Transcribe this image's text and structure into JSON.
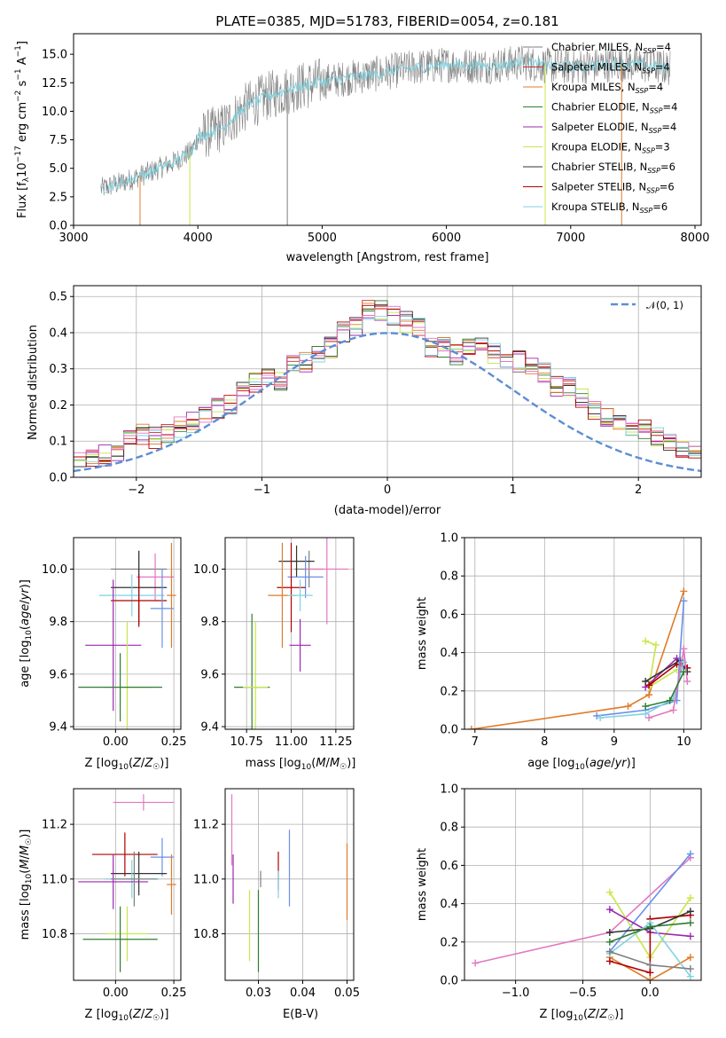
{
  "palette": [
    "#7f7f7f",
    "#d62728",
    "#e07b28",
    "#2e7d32",
    "#9c27b0",
    "#c8e64a",
    "#333333",
    "#b00000",
    "#7fd3e0",
    "#e377c2",
    "#6a8fe8",
    "#1f77b4"
  ],
  "chart_data": [
    {
      "id": "spectrum",
      "type": "line",
      "title": "PLATE=0385, MJD=51783, FIBERID=0054, z=0.181",
      "xlabel": "wavelength [Angstrom, rest frame]",
      "ylabel": "Flux [f$_\\lambda$10$^{-17}$ erg cm$^{-2}$ s$^{-1}$ A$^{-1}$]",
      "xlim": [
        3000,
        8050
      ],
      "ylim": [
        0,
        16.8
      ],
      "xticks": [
        3000,
        4000,
        5000,
        6000,
        7000,
        8000
      ],
      "yticks": [
        0.0,
        2.5,
        5.0,
        7.5,
        10.0,
        12.5,
        15.0
      ],
      "continuum": [
        [
          3220,
          3.2
        ],
        [
          3400,
          3.8
        ],
        [
          3600,
          4.6
        ],
        [
          3800,
          5.5
        ],
        [
          3950,
          6.5
        ],
        [
          4000,
          7.7
        ],
        [
          4200,
          8.6
        ],
        [
          4400,
          10.5
        ],
        [
          4600,
          11.5
        ],
        [
          4800,
          12.1
        ],
        [
          5000,
          12.6
        ],
        [
          5200,
          12.9
        ],
        [
          5400,
          13.2
        ],
        [
          5600,
          13.6
        ],
        [
          5800,
          13.9
        ],
        [
          6000,
          14.1
        ],
        [
          6200,
          14.0
        ],
        [
          6400,
          14.0
        ],
        [
          6600,
          14.3
        ],
        [
          6800,
          14.0
        ],
        [
          7000,
          13.9
        ],
        [
          7200,
          14.0
        ],
        [
          7400,
          14.2
        ],
        [
          7600,
          14.0
        ],
        [
          7800,
          13.8
        ]
      ],
      "legend": [
        {
          "main": "Chabrier MILES, N",
          "sub": "SSP",
          "tail": "=4",
          "color": "#7f7f7f"
        },
        {
          "main": "Salpeter MILES, N",
          "sub": "SSP",
          "tail": "=4",
          "color": "#d62728"
        },
        {
          "main": "Kroupa MILES, N",
          "sub": "SSP",
          "tail": "=4",
          "color": "#e07b28"
        },
        {
          "main": "Chabrier ELODIE, N",
          "sub": "SSP",
          "tail": "=4",
          "color": "#2e7d32"
        },
        {
          "main": "Salpeter ELODIE, N",
          "sub": "SSP",
          "tail": "=4",
          "color": "#9c27b0"
        },
        {
          "main": "Kroupa ELODIE, N",
          "sub": "SSP",
          "tail": "=3",
          "color": "#c8e64a"
        },
        {
          "main": "Chabrier STELIB, N",
          "sub": "SSP",
          "tail": "=6",
          "color": "#333333"
        },
        {
          "main": "Salpeter STELIB, N",
          "sub": "SSP",
          "tail": "=6",
          "color": "#b00000"
        },
        {
          "main": "Kroupa STELIB, N",
          "sub": "SSP",
          "tail": "=6",
          "color": "#7fd3e0"
        }
      ]
    },
    {
      "id": "residuals",
      "type": "histogram",
      "xlabel": "(data-model)/error",
      "ylabel": "Normed distribution",
      "xlim": [
        -2.5,
        2.5
      ],
      "ylim": [
        0,
        0.53
      ],
      "xticks": [
        -2,
        -1,
        0,
        1,
        2
      ],
      "yticks": [
        0.0,
        0.1,
        0.2,
        0.3,
        0.4,
        0.5
      ],
      "bin_width": 0.1,
      "hist": [
        0.02,
        0.02,
        0.03,
        0.04,
        0.04,
        0.05,
        0.05,
        0.06,
        0.06,
        0.1,
        0.12,
        0.11,
        0.12,
        0.14,
        0.15,
        0.17,
        0.19,
        0.2,
        0.24,
        0.26,
        0.28,
        0.27,
        0.31,
        0.32,
        0.34,
        0.36,
        0.4,
        0.42,
        0.46,
        0.46,
        0.45,
        0.43,
        0.42,
        0.36,
        0.36,
        0.34,
        0.36,
        0.37,
        0.34,
        0.33,
        0.32,
        0.3,
        0.29,
        0.25,
        0.25,
        0.22,
        0.19,
        0.17,
        0.16,
        0.14,
        0.13,
        0.11,
        0.1,
        0.08,
        0.07,
        0.07,
        0.05,
        0.04,
        0.03,
        0.02
      ],
      "legend_label": "𝒩(0, 1)",
      "curve_color": "#5b8ed6"
    },
    {
      "id": "age_vs_Z",
      "type": "errorbar",
      "xlabel": "Z [log₁₀(Z/Z☉)]",
      "ylabel": "age  [log₁₀(age/yr)]",
      "xlim": [
        -0.18,
        0.28
      ],
      "ylim": [
        9.39,
        10.12
      ],
      "xticks": [
        0.0,
        0.25
      ],
      "xticklabels": [
        "0.00",
        "0.25"
      ],
      "yticks": [
        9.4,
        9.6,
        9.8,
        10.0
      ],
      "yticklabels": [
        "9.4",
        "9.6",
        "9.8",
        "10.0"
      ],
      "points": [
        {
          "x": 0.1,
          "xe": 0.12,
          "y": 10.0,
          "ye": 0.07,
          "c": "#7f7f7f"
        },
        {
          "x": 0.17,
          "xe": 0.08,
          "y": 9.97,
          "ye": 0.09,
          "c": "#e377c2"
        },
        {
          "x": 0.24,
          "xe": 0.02,
          "y": 9.9,
          "ye": 0.2,
          "c": "#e07b28"
        },
        {
          "x": 0.1,
          "xe": 0.12,
          "y": 9.93,
          "ye": 0.14,
          "c": "#333333"
        },
        {
          "x": 0.07,
          "xe": 0.14,
          "y": 9.9,
          "ye": 0.08,
          "c": "#7fd3e0"
        },
        {
          "x": 0.1,
          "xe": 0.12,
          "y": 9.88,
          "ye": 0.1,
          "c": "#b00000"
        },
        {
          "x": 0.2,
          "xe": 0.05,
          "y": 9.85,
          "ye": 0.15,
          "c": "#6a8fe8"
        },
        {
          "x": -0.01,
          "xe": 0.12,
          "y": 9.71,
          "ye": 0.25,
          "c": "#9c27b0"
        },
        {
          "x": 0.05,
          "xe": 0.1,
          "y": 9.55,
          "ye": 0.25,
          "c": "#c8e64a"
        },
        {
          "x": 0.02,
          "xe": 0.18,
          "y": 9.55,
          "ye": 0.13,
          "c": "#2e7d32"
        }
      ]
    },
    {
      "id": "age_vs_mass",
      "type": "errorbar",
      "xlabel": "mass [log₁₀(M/M☉)]",
      "ylabel": "",
      "xlim": [
        10.63,
        11.35
      ],
      "ylim": [
        9.39,
        10.12
      ],
      "xticks": [
        10.75,
        11.0,
        11.25
      ],
      "xticklabels": [
        "10.75",
        "11.00",
        "11.25"
      ],
      "yticks": [
        9.4,
        9.6,
        9.8,
        10.0
      ],
      "yticklabels": [
        "9.4",
        "9.6",
        "9.8",
        "10.0"
      ],
      "points": [
        {
          "x": 11.1,
          "xe": 0.08,
          "y": 10.0,
          "ye": 0.07,
          "c": "#7f7f7f"
        },
        {
          "x": 11.2,
          "xe": 0.12,
          "y": 10.0,
          "ye": 0.21,
          "c": "#e377c2"
        },
        {
          "x": 11.03,
          "xe": 0.1,
          "y": 10.03,
          "ye": 0.06,
          "c": "#333333"
        },
        {
          "x": 11.08,
          "xe": 0.1,
          "y": 9.97,
          "ye": 0.08,
          "c": "#6a8fe8"
        },
        {
          "x": 11.0,
          "xe": 0.08,
          "y": 9.93,
          "ye": 0.17,
          "c": "#b00000"
        },
        {
          "x": 10.95,
          "xe": 0.08,
          "y": 9.9,
          "ye": 0.2,
          "c": "#e07b28"
        },
        {
          "x": 11.05,
          "xe": 0.07,
          "y": 9.9,
          "ye": 0.06,
          "c": "#7fd3e0"
        },
        {
          "x": 11.05,
          "xe": 0.06,
          "y": 9.71,
          "ye": 0.1,
          "c": "#9c27b0"
        },
        {
          "x": 10.78,
          "xe": 0.1,
          "y": 9.55,
          "ye": 0.28,
          "c": "#2e7d32"
        },
        {
          "x": 10.8,
          "xe": 0.07,
          "y": 9.55,
          "ye": 0.25,
          "c": "#c8e64a"
        }
      ]
    },
    {
      "id": "weight_vs_age",
      "type": "line",
      "xlabel": "age  [log₁₀(age/yr)]",
      "ylabel": "mass weight",
      "xlim": [
        6.85,
        10.25
      ],
      "ylim": [
        0,
        1
      ],
      "xticks": [
        7,
        8,
        9,
        10
      ],
      "xticklabels": [
        "7",
        "8",
        "9",
        "10"
      ],
      "yticks": [
        0.0,
        0.2,
        0.4,
        0.6,
        0.8,
        1.0
      ],
      "yticklabels": [
        "0.0",
        "0.2",
        "0.4",
        "0.6",
        "0.8",
        "1.0"
      ],
      "series": [
        {
          "c": "#e07b28",
          "pts": [
            [
              6.95,
              0.0
            ],
            [
              9.2,
              0.12
            ],
            [
              9.5,
              0.18
            ],
            [
              10.0,
              0.72
            ]
          ]
        },
        {
          "c": "#c8e64a",
          "pts": [
            [
              9.45,
              0.46
            ],
            [
              9.6,
              0.44
            ],
            [
              9.5,
              0.22
            ],
            [
              9.9,
              0.31
            ]
          ]
        },
        {
          "c": "#9c27b0",
          "pts": [
            [
              9.45,
              0.22
            ],
            [
              9.9,
              0.37
            ],
            [
              10.0,
              0.33
            ]
          ]
        },
        {
          "c": "#b00000",
          "pts": [
            [
              9.5,
              0.23
            ],
            [
              9.9,
              0.34
            ],
            [
              10.05,
              0.32
            ]
          ]
        },
        {
          "c": "#333333",
          "pts": [
            [
              9.45,
              0.25
            ],
            [
              9.95,
              0.36
            ],
            [
              10.05,
              0.3
            ]
          ]
        },
        {
          "c": "#6a8fe8",
          "pts": [
            [
              8.75,
              0.07
            ],
            [
              9.45,
              0.1
            ],
            [
              9.9,
              0.15
            ],
            [
              10.0,
              0.67
            ]
          ]
        },
        {
          "c": "#7fd3e0",
          "pts": [
            [
              8.8,
              0.06
            ],
            [
              9.45,
              0.08
            ],
            [
              9.85,
              0.16
            ],
            [
              10.0,
              0.35
            ]
          ]
        },
        {
          "c": "#e377c2",
          "pts": [
            [
              9.5,
              0.06
            ],
            [
              9.85,
              0.1
            ],
            [
              10.0,
              0.42
            ],
            [
              10.05,
              0.25
            ]
          ]
        },
        {
          "c": "#2e7d32",
          "pts": [
            [
              9.45,
              0.12
            ],
            [
              9.8,
              0.15
            ],
            [
              10.0,
              0.3
            ]
          ]
        }
      ]
    },
    {
      "id": "mass_vs_Z",
      "type": "errorbar",
      "xlabel": "Z [log₁₀(Z/Z☉)]",
      "ylabel": "mass [log₁₀(M/M☉)]",
      "xlim": [
        -0.18,
        0.28
      ],
      "ylim": [
        10.63,
        11.33
      ],
      "xticks": [
        0.0,
        0.25
      ],
      "xticklabels": [
        "0.00",
        "0.25"
      ],
      "yticks": [
        10.8,
        11.0,
        11.2
      ],
      "yticklabels": [
        "10.8",
        "11.0",
        "11.2"
      ],
      "points": [
        {
          "x": 0.12,
          "xe": 0.13,
          "y": 11.28,
          "ye": 0.03,
          "c": "#e377c2"
        },
        {
          "x": 0.04,
          "xe": 0.14,
          "y": 11.09,
          "ye": 0.08,
          "c": "#b00000"
        },
        {
          "x": 0.2,
          "xe": 0.05,
          "y": 11.08,
          "ye": 0.07,
          "c": "#6a8fe8"
        },
        {
          "x": 0.1,
          "xe": 0.12,
          "y": 11.02,
          "ye": 0.08,
          "c": "#333333"
        },
        {
          "x": 0.24,
          "xe": 0.02,
          "y": 10.98,
          "ye": 0.11,
          "c": "#e07b28"
        },
        {
          "x": 0.07,
          "xe": 0.12,
          "y": 11.0,
          "ye": 0.07,
          "c": "#7fd3e0"
        },
        {
          "x": -0.01,
          "xe": 0.15,
          "y": 10.99,
          "ye": 0.1,
          "c": "#9c27b0"
        },
        {
          "x": 0.08,
          "xe": 0.1,
          "y": 11.0,
          "ye": 0.1,
          "c": "#7f7f7f"
        },
        {
          "x": 0.05,
          "xe": 0.09,
          "y": 10.8,
          "ye": 0.1,
          "c": "#c8e64a"
        },
        {
          "x": 0.02,
          "xe": 0.16,
          "y": 10.78,
          "ye": 0.12,
          "c": "#2e7d32"
        }
      ]
    },
    {
      "id": "mass_vs_EBV",
      "type": "errorbar",
      "xlabel": "E(B-V)",
      "ylabel": "",
      "xlim": [
        0.0225,
        0.0515
      ],
      "ylim": [
        10.63,
        11.33
      ],
      "xticks": [
        0.03,
        0.04,
        0.05
      ],
      "xticklabels": [
        "0.03",
        "0.04",
        "0.05"
      ],
      "yticks": [
        10.8,
        11.0,
        11.2
      ],
      "yticklabels": [
        "10.8",
        "11.0",
        "11.2"
      ],
      "points": [
        {
          "x": 0.024,
          "xe": 0,
          "y": 11.18,
          "ye": 0.13,
          "c": "#e377c2"
        },
        {
          "x": 0.0243,
          "xe": 0,
          "y": 11.0,
          "ye": 0.09,
          "c": "#9c27b0"
        },
        {
          "x": 0.028,
          "xe": 0,
          "y": 10.83,
          "ye": 0.13,
          "c": "#c8e64a"
        },
        {
          "x": 0.03,
          "xe": 0,
          "y": 10.81,
          "ye": 0.15,
          "c": "#2e7d32"
        },
        {
          "x": 0.0305,
          "xe": 0,
          "y": 11.0,
          "ye": 0.03,
          "c": "#7f7f7f"
        },
        {
          "x": 0.0345,
          "xe": 0,
          "y": 11.03,
          "ye": 0.07,
          "c": "#b00000"
        },
        {
          "x": 0.0345,
          "xe": 0,
          "y": 10.98,
          "ye": 0.05,
          "c": "#7fd3e0"
        },
        {
          "x": 0.037,
          "xe": 0,
          "y": 11.04,
          "ye": 0.14,
          "c": "#6a8fe8"
        },
        {
          "x": 0.05,
          "xe": 0,
          "y": 10.99,
          "ye": 0.14,
          "c": "#e07b28"
        }
      ]
    },
    {
      "id": "weight_vs_Z",
      "type": "line",
      "xlabel": "Z [log₁₀(Z/Z☉)]",
      "ylabel": "mass weight",
      "xlim": [
        -1.38,
        0.38
      ],
      "ylim": [
        0,
        1
      ],
      "xticks": [
        -1.0,
        -0.5,
        0.0
      ],
      "xticklabels": [
        "−1.0",
        "−0.5",
        "0.0"
      ],
      "yticks": [
        0.0,
        0.2,
        0.4,
        0.6,
        0.8,
        1.0
      ],
      "yticklabels": [
        "0.0",
        "0.2",
        "0.4",
        "0.6",
        "0.8",
        "1.0"
      ],
      "series": [
        {
          "c": "#e377c2",
          "pts": [
            [
              -1.3,
              0.09
            ],
            [
              -0.3,
              0.25
            ],
            [
              0.3,
              0.64
            ]
          ]
        },
        {
          "c": "#6a8fe8",
          "pts": [
            [
              -0.3,
              0.15
            ],
            [
              0.3,
              0.66
            ]
          ]
        },
        {
          "c": "#e07b28",
          "pts": [
            [
              -0.3,
              0.12
            ],
            [
              0.0,
              0.0
            ],
            [
              0.3,
              0.12
            ]
          ]
        },
        {
          "c": "#c8e64a",
          "pts": [
            [
              -0.3,
              0.46
            ],
            [
              0.0,
              0.12
            ],
            [
              0.3,
              0.43
            ]
          ]
        },
        {
          "c": "#9c27b0",
          "pts": [
            [
              -0.3,
              0.37
            ],
            [
              0.0,
              0.25
            ],
            [
              0.3,
              0.23
            ]
          ]
        },
        {
          "c": "#b00000",
          "pts": [
            [
              -0.3,
              0.1
            ],
            [
              0.0,
              0.04
            ],
            [
              0.0,
              0.32
            ],
            [
              0.3,
              0.34
            ]
          ]
        },
        {
          "c": "#333333",
          "pts": [
            [
              -0.3,
              0.25
            ],
            [
              0.0,
              0.27
            ],
            [
              0.3,
              0.36
            ]
          ]
        },
        {
          "c": "#7fd3e0",
          "pts": [
            [
              -0.3,
              0.14
            ],
            [
              0.0,
              0.3
            ],
            [
              0.3,
              0.02
            ]
          ]
        },
        {
          "c": "#2e7d32",
          "pts": [
            [
              -0.3,
              0.2
            ],
            [
              0.0,
              0.28
            ],
            [
              0.3,
              0.3
            ]
          ]
        },
        {
          "c": "#7f7f7f",
          "pts": [
            [
              -0.3,
              0.15
            ],
            [
              0.0,
              0.08
            ],
            [
              0.3,
              0.06
            ]
          ]
        }
      ]
    }
  ]
}
